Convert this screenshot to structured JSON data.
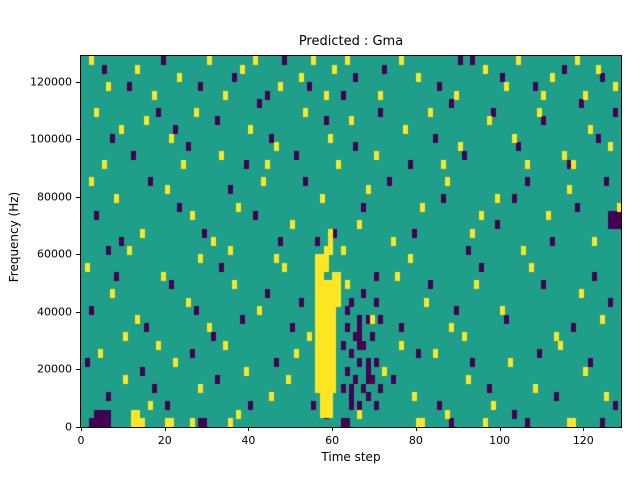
{
  "figure": {
    "title": "Predicted : Gma",
    "xlabel": "Time step",
    "ylabel": "Frequency (Hz)"
  },
  "chart_data": {
    "type": "heatmap",
    "title": "Predicted : Gma",
    "xlabel": "Time step",
    "ylabel": "Frequency (Hz)",
    "x_range": [
      0,
      129
    ],
    "y_range": [
      0,
      129000
    ],
    "x_ticks": [
      0,
      20,
      40,
      60,
      80,
      100,
      120
    ],
    "y_ticks": [
      0,
      20000,
      40000,
      60000,
      80000,
      100000,
      120000
    ],
    "grid": {
      "cols": 129,
      "rows": 43,
      "freq_per_row_hz": 3000
    },
    "colormap": {
      "background": "#1f9e89",
      "high": "#fde725",
      "low": "#440154"
    },
    "legend": false,
    "description": "Spectrogram-like classification map: teal background with scattered yellow (high) and dark purple (low) cells; dense yellow vertical band near time steps 56-61 between ~6000-57000 Hz, purple cluster near time steps 62-71.",
    "cells": {
      "yellow_blocks": [
        [
          56,
          4,
          5,
          13
        ],
        [
          57,
          1,
          3,
          3
        ],
        [
          56,
          17,
          2,
          3
        ],
        [
          60,
          14,
          2,
          4
        ],
        [
          58,
          18,
          1,
          3
        ],
        [
          12,
          0,
          2,
          2
        ],
        [
          20,
          0,
          2,
          1
        ],
        [
          59,
          20,
          1,
          3
        ]
      ],
      "purple_blocks": [
        [
          3,
          0,
          4,
          2
        ],
        [
          126,
          23,
          3,
          2
        ],
        [
          64,
          2,
          1,
          3
        ],
        [
          66,
          9,
          1,
          4
        ],
        [
          68,
          5,
          1,
          3
        ]
      ],
      "yellow": [
        [
          2,
          42
        ],
        [
          13,
          41
        ],
        [
          23,
          40
        ],
        [
          30,
          42
        ],
        [
          38,
          41
        ],
        [
          41,
          42
        ],
        [
          52,
          40
        ],
        [
          55,
          42
        ],
        [
          60,
          41
        ],
        [
          63,
          42
        ],
        [
          76,
          42
        ],
        [
          80,
          40
        ],
        [
          96,
          41
        ],
        [
          104,
          42
        ],
        [
          112,
          40
        ],
        [
          118,
          42
        ],
        [
          123,
          41
        ],
        [
          127,
          39
        ],
        [
          6,
          39
        ],
        [
          17,
          38
        ],
        [
          34,
          38
        ],
        [
          47,
          39
        ],
        [
          58,
          38
        ],
        [
          71,
          38
        ],
        [
          89,
          38
        ],
        [
          101,
          39
        ],
        [
          110,
          38
        ],
        [
          120,
          38
        ],
        [
          3,
          36
        ],
        [
          9,
          34
        ],
        [
          15,
          35
        ],
        [
          21,
          33
        ],
        [
          27,
          36
        ],
        [
          33,
          31
        ],
        [
          40,
          34
        ],
        [
          46,
          32
        ],
        [
          53,
          36
        ],
        [
          59,
          33
        ],
        [
          64,
          35
        ],
        [
          70,
          31
        ],
        [
          77,
          34
        ],
        [
          83,
          36
        ],
        [
          90,
          32
        ],
        [
          97,
          35
        ],
        [
          103,
          33
        ],
        [
          109,
          36
        ],
        [
          115,
          31
        ],
        [
          121,
          34
        ],
        [
          126,
          32
        ],
        [
          5,
          30
        ],
        [
          24,
          30
        ],
        [
          44,
          30
        ],
        [
          61,
          30
        ],
        [
          86,
          30
        ],
        [
          106,
          30
        ],
        [
          117,
          30
        ],
        [
          2,
          28
        ],
        [
          8,
          26
        ],
        [
          14,
          22
        ],
        [
          20,
          27
        ],
        [
          26,
          24
        ],
        [
          31,
          21
        ],
        [
          37,
          25
        ],
        [
          43,
          28
        ],
        [
          50,
          23
        ],
        [
          57,
          26
        ],
        [
          62,
          20
        ],
        [
          68,
          27
        ],
        [
          74,
          21
        ],
        [
          81,
          25
        ],
        [
          87,
          28
        ],
        [
          93,
          22
        ],
        [
          99,
          26
        ],
        [
          105,
          20
        ],
        [
          111,
          24
        ],
        [
          116,
          27
        ],
        [
          122,
          21
        ],
        [
          128,
          25
        ],
        [
          11,
          20
        ],
        [
          35,
          20
        ],
        [
          66,
          23
        ],
        [
          95,
          24
        ],
        [
          1,
          18
        ],
        [
          7,
          15
        ],
        [
          13,
          12
        ],
        [
          19,
          17
        ],
        [
          25,
          14
        ],
        [
          30,
          11
        ],
        [
          36,
          16
        ],
        [
          42,
          13
        ],
        [
          48,
          18
        ],
        [
          54,
          10
        ],
        [
          63,
          16
        ],
        [
          69,
          12
        ],
        [
          75,
          17
        ],
        [
          82,
          14
        ],
        [
          88,
          11
        ],
        [
          94,
          16
        ],
        [
          100,
          13
        ],
        [
          107,
          18
        ],
        [
          113,
          10
        ],
        [
          119,
          15
        ],
        [
          124,
          12
        ],
        [
          10,
          10
        ],
        [
          28,
          19
        ],
        [
          46,
          19
        ],
        [
          78,
          19
        ],
        [
          91,
          10
        ],
        [
          4,
          8
        ],
        [
          10,
          5
        ],
        [
          16,
          2
        ],
        [
          22,
          7
        ],
        [
          28,
          4
        ],
        [
          34,
          9
        ],
        [
          39,
          6
        ],
        [
          45,
          3
        ],
        [
          51,
          8
        ],
        [
          66,
          1
        ],
        [
          72,
          6
        ],
        [
          79,
          3
        ],
        [
          84,
          8
        ],
        [
          92,
          5
        ],
        [
          98,
          2
        ],
        [
          102,
          7
        ],
        [
          108,
          4
        ],
        [
          114,
          9
        ],
        [
          120,
          6
        ],
        [
          125,
          3
        ],
        [
          12,
          1
        ],
        [
          18,
          9
        ],
        [
          37,
          1
        ],
        [
          49,
          5
        ],
        [
          76,
          9
        ],
        [
          87,
          1
        ],
        [
          13,
          0
        ],
        [
          14,
          0
        ],
        [
          20,
          0
        ],
        [
          21,
          0
        ],
        [
          26,
          0
        ],
        [
          35,
          0
        ],
        [
          80,
          0
        ],
        [
          81,
          0
        ],
        [
          96,
          0
        ],
        [
          116,
          0
        ],
        [
          117,
          0
        ]
      ],
      "purple": [
        [
          5,
          41
        ],
        [
          11,
          39
        ],
        [
          19,
          42
        ],
        [
          28,
          39
        ],
        [
          36,
          40
        ],
        [
          44,
          38
        ],
        [
          54,
          39
        ],
        [
          62,
          38
        ],
        [
          72,
          41
        ],
        [
          85,
          39
        ],
        [
          93,
          42
        ],
        [
          100,
          40
        ],
        [
          108,
          39
        ],
        [
          115,
          41
        ],
        [
          124,
          40
        ],
        [
          65,
          40
        ],
        [
          48,
          42
        ],
        [
          90,
          42
        ],
        [
          7,
          33
        ],
        [
          12,
          31
        ],
        [
          18,
          36
        ],
        [
          25,
          32
        ],
        [
          32,
          35
        ],
        [
          39,
          30
        ],
        [
          45,
          33
        ],
        [
          51,
          31
        ],
        [
          58,
          35
        ],
        [
          65,
          32
        ],
        [
          71,
          36
        ],
        [
          78,
          30
        ],
        [
          84,
          33
        ],
        [
          91,
          31
        ],
        [
          98,
          36
        ],
        [
          104,
          32
        ],
        [
          110,
          35
        ],
        [
          116,
          30
        ],
        [
          123,
          33
        ],
        [
          127,
          36
        ],
        [
          22,
          34
        ],
        [
          42,
          37
        ],
        [
          88,
          37
        ],
        [
          119,
          37
        ],
        [
          3,
          24
        ],
        [
          9,
          21
        ],
        [
          16,
          28
        ],
        [
          23,
          25
        ],
        [
          29,
          22
        ],
        [
          35,
          27
        ],
        [
          41,
          24
        ],
        [
          47,
          21
        ],
        [
          53,
          28
        ],
        [
          60,
          22
        ],
        [
          67,
          25
        ],
        [
          73,
          28
        ],
        [
          79,
          22
        ],
        [
          86,
          26
        ],
        [
          92,
          20
        ],
        [
          99,
          23
        ],
        [
          106,
          28
        ],
        [
          112,
          21
        ],
        [
          118,
          25
        ],
        [
          125,
          28
        ],
        [
          6,
          20
        ],
        [
          56,
          21
        ],
        [
          103,
          26
        ],
        [
          2,
          13
        ],
        [
          8,
          17
        ],
        [
          15,
          11
        ],
        [
          21,
          16
        ],
        [
          27,
          13
        ],
        [
          33,
          18
        ],
        [
          38,
          12
        ],
        [
          44,
          15
        ],
        [
          50,
          11
        ],
        [
          63,
          13
        ],
        [
          70,
          17
        ],
        [
          76,
          11
        ],
        [
          83,
          16
        ],
        [
          89,
          13
        ],
        [
          95,
          18
        ],
        [
          101,
          12
        ],
        [
          110,
          16
        ],
        [
          117,
          11
        ],
        [
          122,
          17
        ],
        [
          126,
          14
        ],
        [
          31,
          10
        ],
        [
          52,
          14
        ],
        [
          62,
          4
        ],
        [
          62,
          9
        ],
        [
          63,
          6
        ],
        [
          63,
          11
        ],
        [
          64,
          8
        ],
        [
          64,
          14
        ],
        [
          65,
          5
        ],
        [
          65,
          10
        ],
        [
          66,
          2
        ],
        [
          66,
          7
        ],
        [
          67,
          4
        ],
        [
          67,
          9
        ],
        [
          67,
          15
        ],
        [
          68,
          3
        ],
        [
          68,
          12
        ],
        [
          69,
          5
        ],
        [
          69,
          10
        ],
        [
          70,
          2
        ],
        [
          70,
          7
        ],
        [
          70,
          14
        ],
        [
          71,
          4
        ],
        [
          71,
          12
        ],
        [
          1,
          7
        ],
        [
          6,
          3
        ],
        [
          14,
          6
        ],
        [
          20,
          2
        ],
        [
          26,
          8
        ],
        [
          32,
          5
        ],
        [
          40,
          2
        ],
        [
          46,
          7
        ],
        [
          55,
          2
        ],
        [
          74,
          5
        ],
        [
          80,
          8
        ],
        [
          85,
          2
        ],
        [
          93,
          7
        ],
        [
          97,
          4
        ],
        [
          103,
          1
        ],
        [
          109,
          8
        ],
        [
          113,
          3
        ],
        [
          121,
          7
        ],
        [
          127,
          2
        ],
        [
          17,
          4
        ],
        [
          58,
          1
        ],
        [
          2,
          0
        ],
        [
          28,
          0
        ],
        [
          29,
          0
        ],
        [
          62,
          0
        ],
        [
          63,
          0
        ],
        [
          88,
          0
        ],
        [
          106,
          0
        ],
        [
          124,
          0
        ]
      ]
    }
  }
}
